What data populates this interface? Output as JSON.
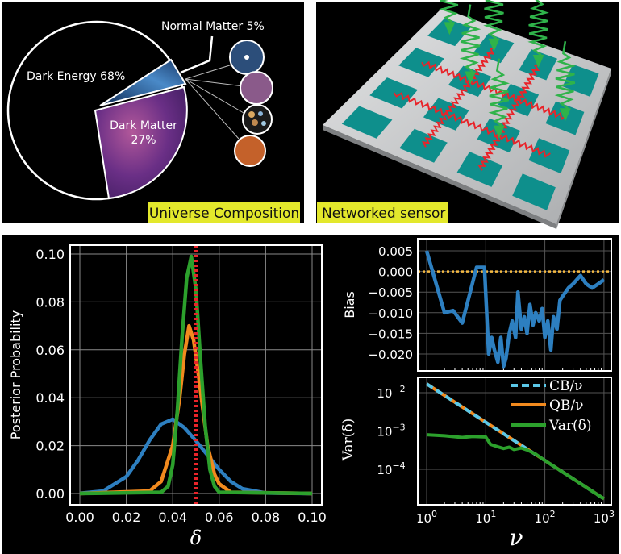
{
  "panels": {
    "universe": {
      "caption": "Universe Composition",
      "labels": {
        "normal_matter": "Normal Matter 5%",
        "dark_energy": "Dark Energy 68%",
        "dark_matter_line1": "Dark Matter",
        "dark_matter_line2": "27%"
      }
    },
    "sensor": {
      "caption": "Networked sensor"
    }
  },
  "colors": {
    "caption_bg": "#e3e82c",
    "blue": "#2d7fc0",
    "orange": "#f28a1e",
    "green": "#2ca02c",
    "red": "#e8242a",
    "cyan": "#5bc8e8",
    "bias_ref": "#f5b942",
    "teal": "#0e8f8c",
    "plate": "#c8cacc"
  },
  "chart_data": [
    {
      "type": "pie",
      "title": "Universe Composition",
      "slices": [
        {
          "name": "Dark Energy",
          "value": 68
        },
        {
          "name": "Dark Matter",
          "value": 27
        },
        {
          "name": "Normal Matter",
          "value": 5
        }
      ]
    },
    {
      "type": "line",
      "xlabel": "δ",
      "ylabel": "Posterior Probability",
      "xlim": [
        0,
        0.1
      ],
      "ylim": [
        0,
        0.1
      ],
      "xticks": [
        "0.00",
        "0.02",
        "0.04",
        "0.06",
        "0.08",
        "0.10"
      ],
      "yticks": [
        "0.00",
        "0.02",
        "0.04",
        "0.06",
        "0.08",
        "0.10"
      ],
      "grid": true,
      "vline": {
        "x": 0.05,
        "style": "dotted",
        "color": "#e8242a"
      },
      "series": [
        {
          "color": "#2d7fc0",
          "x": [
            0,
            0.01,
            0.02,
            0.025,
            0.03,
            0.035,
            0.04,
            0.045,
            0.05,
            0.055,
            0.06,
            0.065,
            0.07,
            0.08,
            0.1
          ],
          "y": [
            0.0001,
            0.001,
            0.007,
            0.0138,
            0.0222,
            0.029,
            0.031,
            0.0275,
            0.022,
            0.016,
            0.01,
            0.005,
            0.002,
            0.0002,
            0
          ]
        },
        {
          "color": "#f28a1e",
          "x": [
            0,
            0.03,
            0.035,
            0.04,
            0.043,
            0.045,
            0.047,
            0.049,
            0.051,
            0.053,
            0.055,
            0.058,
            0.06,
            0.065,
            0.1
          ],
          "y": [
            0,
            0.001,
            0.005,
            0.02,
            0.04,
            0.058,
            0.07,
            0.064,
            0.05,
            0.035,
            0.02,
            0.008,
            0.004,
            0.0005,
            0
          ]
        },
        {
          "color": "#2ca02c",
          "x": [
            0,
            0.035,
            0.038,
            0.04,
            0.042,
            0.044,
            0.046,
            0.048,
            0.05,
            0.052,
            0.054,
            0.056,
            0.058,
            0.06,
            0.1
          ],
          "y": [
            0,
            0.0005,
            0.003,
            0.012,
            0.035,
            0.065,
            0.09,
            0.099,
            0.085,
            0.055,
            0.028,
            0.01,
            0.003,
            0.0005,
            0
          ]
        }
      ]
    },
    {
      "type": "line",
      "ylabel": "Bias",
      "xscale": "log",
      "xlim": [
        1,
        1000
      ],
      "ylim": [
        -0.023,
        0.006
      ],
      "yticks": [
        "0.005",
        "0.000",
        "−0.005",
        "−0.010",
        "−0.015",
        "−0.020"
      ],
      "grid": true,
      "hline": {
        "y": 0,
        "style": "dotted",
        "color": "#f5b942"
      },
      "series": [
        {
          "color": "#2d7fc0",
          "x": [
            1,
            2,
            2.8,
            4,
            7,
            9.5,
            11.2,
            12.6,
            14,
            16,
            18,
            20,
            22,
            25,
            28,
            32,
            35,
            40,
            45,
            50,
            56,
            63,
            70,
            80,
            90,
            100,
            112,
            126,
            140,
            160,
            180,
            200,
            250,
            300,
            400,
            500,
            630,
            800,
            1000
          ],
          "y": [
            0.005,
            -0.01,
            -0.0095,
            -0.0125,
            0.001,
            0.001,
            -0.02,
            -0.016,
            -0.019,
            -0.022,
            -0.016,
            -0.023,
            -0.021,
            -0.015,
            -0.012,
            -0.016,
            -0.005,
            -0.014,
            -0.011,
            -0.015,
            -0.008,
            -0.013,
            -0.01,
            -0.012,
            -0.009,
            -0.016,
            -0.012,
            -0.019,
            -0.011,
            -0.014,
            -0.007,
            -0.006,
            -0.004,
            -0.003,
            -0.001,
            -0.003,
            -0.004,
            -0.003,
            -0.002
          ]
        }
      ]
    },
    {
      "type": "line",
      "xlabel": "ν",
      "ylabel": "Var(δ)",
      "xscale": "log",
      "yscale": "log",
      "xlim": [
        1,
        1000
      ],
      "xticks": [
        "10^0",
        "10^1",
        "10^2",
        "10^3"
      ],
      "yticks": [
        "10^-2",
        "10^-3",
        "10^-4"
      ],
      "grid": true,
      "legend": "top-right",
      "series": [
        {
          "name": "QB/ν",
          "color": "#f28a1e",
          "style": "solid",
          "x": [
            1,
            1000
          ],
          "y": [
            0.017,
            1.7e-05
          ]
        },
        {
          "name": "CB/ν",
          "color": "#5bc8e8",
          "style": "dashed",
          "x": [
            1,
            1000
          ],
          "y": [
            0.017,
            1.7e-05
          ]
        },
        {
          "name": "Var(δ)",
          "color": "#2ca02c",
          "style": "solid",
          "x": [
            1,
            2,
            4,
            6,
            10,
            12,
            15,
            20,
            25,
            30,
            40,
            50,
            70,
            100,
            200,
            500,
            1000
          ],
          "y": [
            0.0008,
            0.00075,
            0.00068,
            0.00072,
            0.0007,
            0.00045,
            0.0004,
            0.00035,
            0.00038,
            0.00033,
            0.00036,
            0.00032,
            0.00025,
            0.00017,
            8.5e-05,
            3.4e-05,
            1.7e-05
          ]
        }
      ]
    }
  ]
}
